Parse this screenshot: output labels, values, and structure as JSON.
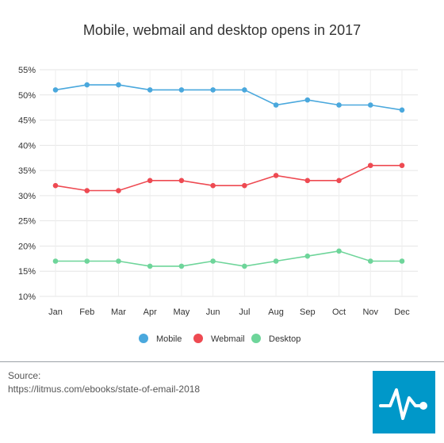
{
  "title": "Mobile, webmail and desktop opens in 2017",
  "source": {
    "label": "Source:",
    "url": "https://litmus.com/ebooks/state-of-email-2018"
  },
  "logo": {
    "icon": "pulse-line-icon",
    "background": "#0098c9"
  },
  "chart_data": {
    "type": "line",
    "title": "Mobile, webmail and desktop opens in 2017",
    "categories": [
      "Jan",
      "Feb",
      "Mar",
      "Apr",
      "May",
      "Jun",
      "Jul",
      "Aug",
      "Sep",
      "Oct",
      "Nov",
      "Dec"
    ],
    "y_ticks": [
      10,
      15,
      20,
      25,
      30,
      35,
      40,
      45,
      50,
      55
    ],
    "y_tick_suffix": "%",
    "ylim": [
      10,
      55
    ],
    "grid": true,
    "legend_position": "bottom-center",
    "series": [
      {
        "name": "Mobile",
        "color": "#4aa8dd",
        "values": [
          51,
          52,
          52,
          51,
          51,
          51,
          51,
          48,
          49,
          48,
          48,
          47
        ]
      },
      {
        "name": "Webmail",
        "color": "#ee4a52",
        "values": [
          32,
          31,
          31,
          33,
          33,
          32,
          32,
          34,
          33,
          33,
          36,
          36
        ]
      },
      {
        "name": "Desktop",
        "color": "#6ed59a",
        "values": [
          17,
          17,
          17,
          16,
          16,
          17,
          16,
          17,
          18,
          19,
          17,
          17
        ]
      }
    ]
  }
}
